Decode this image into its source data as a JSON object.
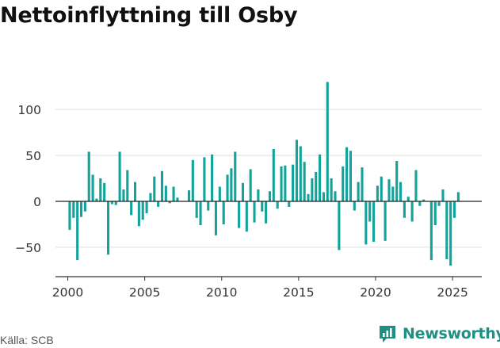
{
  "page": {
    "title": "Nettoinflyttning till Osby",
    "source": "Källa: SCB",
    "brand": "Newsworthy"
  },
  "colors": {
    "bar": "#12a39a",
    "grid": "#dddddd",
    "zero_line": "#222222",
    "brand": "#1f8f84"
  },
  "chart_data": {
    "type": "bar",
    "title": "Nettoinflyttning till Osby",
    "xlabel": "",
    "ylabel": "",
    "x_ticks": [
      "2000",
      "2005",
      "2010",
      "2015",
      "2020",
      "2025"
    ],
    "y_ticks": [
      100,
      50,
      0,
      -50
    ],
    "y_tick_labels": [
      "100",
      "50",
      "0",
      "−50"
    ],
    "xlim": [
      1999.2,
      2026.9
    ],
    "ylim": [
      -82,
      145
    ],
    "grid": true,
    "legend": "none",
    "series": [
      {
        "x": [
          2000.125,
          2000.375,
          2000.625,
          2000.875,
          2001.125,
          2001.375,
          2001.625,
          2001.875,
          2002.125,
          2002.375,
          2002.625,
          2002.875,
          2003.125,
          2003.375,
          2003.625,
          2003.875,
          2004.125,
          2004.375,
          2004.625,
          2004.875,
          2005.125,
          2005.375,
          2005.625,
          2005.875,
          2006.125,
          2006.375,
          2006.625,
          2006.875,
          2007.125,
          2007.375,
          2007.625,
          2007.875,
          2008.125,
          2008.375,
          2008.625,
          2008.875,
          2009.125,
          2009.375,
          2009.625,
          2009.875,
          2010.125,
          2010.375,
          2010.625,
          2010.875,
          2011.125,
          2011.375,
          2011.625,
          2011.875,
          2012.125,
          2012.375,
          2012.625,
          2012.875,
          2013.125,
          2013.375,
          2013.625,
          2013.875,
          2014.125,
          2014.375,
          2014.625,
          2014.875,
          2015.125,
          2015.375,
          2015.625,
          2015.875,
          2016.125,
          2016.375,
          2016.625,
          2016.875,
          2017.125,
          2017.375,
          2017.625,
          2017.875,
          2018.125,
          2018.375,
          2018.625,
          2018.875,
          2019.125,
          2019.375,
          2019.625,
          2019.875,
          2020.125,
          2020.375,
          2020.625,
          2020.875,
          2021.125,
          2021.375,
          2021.625,
          2021.875,
          2022.125,
          2022.375,
          2022.625,
          2022.875,
          2023.125,
          2023.375,
          2023.625,
          2023.875,
          2024.125,
          2024.375,
          2024.625,
          2024.875,
          2025.125,
          2025.375
        ],
        "values": [
          -31,
          -18,
          -64,
          -17,
          -11,
          54,
          29,
          3,
          25,
          20,
          -58,
          -3,
          -4,
          54,
          13,
          34,
          -15,
          21,
          -27,
          -20,
          -13,
          9,
          27,
          -6,
          33,
          17,
          -2,
          16,
          4,
          0,
          0,
          12,
          45,
          -18,
          -26,
          48,
          -10,
          51,
          -37,
          16,
          -25,
          29,
          36,
          54,
          -29,
          20,
          -33,
          35,
          -23,
          13,
          -11,
          -24,
          11,
          57,
          -8,
          38,
          39,
          -6,
          40,
          67,
          60,
          43,
          8,
          25,
          32,
          51,
          10,
          130,
          25,
          11,
          -53,
          38,
          59,
          55,
          -10,
          21,
          37,
          -47,
          -22,
          -44,
          17,
          27,
          -43,
          24,
          16,
          44,
          21,
          -18,
          5,
          -22,
          34,
          -5,
          2,
          0,
          -64,
          -26,
          -5,
          13,
          -63,
          -70,
          -18,
          10
        ]
      }
    ]
  }
}
